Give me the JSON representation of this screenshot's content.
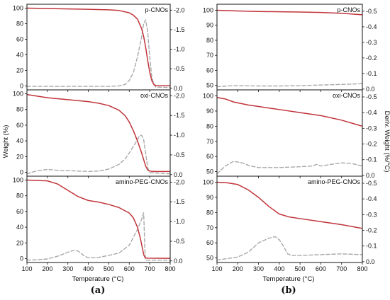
{
  "figure": {
    "captions": [
      "(a)",
      "(b)"
    ],
    "x_axis_title": "Temperature (°C)",
    "left_axis_title": "Weight (%)",
    "right_axis_title": "Deriv. Weight (%/°C)",
    "colors": {
      "weight": "#c0343a",
      "derivative": "#a9a9a9",
      "frame": "#111111"
    }
  },
  "chart_data": [
    {
      "type": "line",
      "column": "a",
      "row": 0,
      "panel_label": "p-CNOs",
      "x_ticks": [
        100,
        200,
        300,
        400,
        500,
        600,
        700,
        800
      ],
      "show_x_tick_labels": false,
      "xlim": [
        100,
        800
      ],
      "ylim": [
        -5,
        105
      ],
      "y_ticks": [
        0,
        20,
        40,
        60,
        80,
        100
      ],
      "y2lim": [
        -0.04,
        2.15
      ],
      "y2_ticks": [
        0.0,
        0.5,
        1.0,
        1.5,
        2.0
      ],
      "y2_tick_labels": [
        "0.0",
        "-0.5",
        "-1.0",
        "-1.5",
        "-2.0"
      ],
      "series": [
        {
          "role": "weight",
          "axis": "left",
          "x": [
            100,
            200,
            300,
            400,
            500,
            550,
            600,
            620,
            640,
            660,
            670,
            680,
            690,
            700,
            710,
            720,
            730,
            800
          ],
          "y": [
            100,
            99.5,
            99,
            98.5,
            97.8,
            97,
            94,
            91,
            86,
            74,
            64,
            50,
            33,
            18,
            7,
            2,
            0.5,
            0.3
          ]
        },
        {
          "role": "derivative",
          "axis": "right",
          "x": [
            100,
            300,
            500,
            550,
            580,
            600,
            620,
            640,
            660,
            670,
            680,
            690,
            700,
            710,
            720,
            730,
            800
          ],
          "y": [
            0.05,
            0.05,
            0.05,
            0.06,
            0.1,
            0.2,
            0.4,
            0.8,
            1.3,
            1.65,
            1.75,
            1.45,
            0.8,
            0.3,
            0.1,
            0.03,
            0.02
          ]
        }
      ]
    },
    {
      "type": "line",
      "column": "a",
      "row": 1,
      "panel_label": "oxi-CNOs",
      "x_ticks": [
        100,
        200,
        300,
        400,
        500,
        600,
        700,
        800
      ],
      "show_x_tick_labels": false,
      "xlim": [
        100,
        800
      ],
      "ylim": [
        -5,
        105
      ],
      "y_ticks": [
        0,
        20,
        40,
        60,
        80,
        100
      ],
      "y2lim": [
        -0.04,
        2.15
      ],
      "y2_ticks": [
        0.0,
        0.5,
        1.0,
        1.5,
        2.0
      ],
      "y2_tick_labels": [
        "0.0",
        "-0.5",
        "-1.0",
        "-1.5",
        "-2.0"
      ],
      "series": [
        {
          "role": "weight",
          "axis": "left",
          "x": [
            100,
            150,
            200,
            300,
            400,
            450,
            500,
            550,
            580,
            600,
            620,
            640,
            660,
            680,
            690,
            700,
            720,
            800
          ],
          "y": [
            99,
            97,
            95,
            92.5,
            90,
            88,
            85,
            79,
            72,
            64,
            53,
            40,
            25,
            8,
            3,
            1.5,
            1,
            1
          ]
        },
        {
          "role": "derivative",
          "axis": "right",
          "x": [
            100,
            150,
            200,
            250,
            300,
            350,
            400,
            450,
            500,
            550,
            580,
            600,
            630,
            650,
            660,
            670,
            680,
            690,
            700,
            800
          ],
          "y": [
            0.02,
            0.1,
            0.13,
            0.11,
            0.1,
            0.09,
            0.08,
            0.09,
            0.14,
            0.26,
            0.4,
            0.55,
            0.8,
            0.98,
            1.0,
            0.9,
            0.55,
            0.18,
            0.05,
            0.02
          ]
        }
      ]
    },
    {
      "type": "line",
      "column": "a",
      "row": 2,
      "panel_label": "amino-PEG-CNOs",
      "x_ticks": [
        100,
        200,
        300,
        400,
        500,
        600,
        700,
        800
      ],
      "show_x_tick_labels": true,
      "xlim": [
        100,
        800
      ],
      "ylim": [
        -5,
        105
      ],
      "y_ticks": [
        0,
        20,
        40,
        60,
        80,
        100
      ],
      "y2lim": [
        -0.04,
        2.15
      ],
      "y2_ticks": [
        0.0,
        0.5,
        1.0,
        1.5,
        2.0
      ],
      "y2_tick_labels": [
        "0.0",
        "-0.5",
        "-1.0",
        "-1.5",
        "-2.0"
      ],
      "series": [
        {
          "role": "weight",
          "axis": "left",
          "x": [
            100,
            200,
            250,
            300,
            350,
            400,
            450,
            500,
            550,
            600,
            620,
            640,
            655,
            665,
            672,
            678,
            690,
            800
          ],
          "y": [
            100,
            99,
            95,
            87,
            79,
            74,
            72,
            69,
            65,
            58,
            52,
            40,
            25,
            12,
            4,
            1,
            0.5,
            0.3
          ]
        },
        {
          "role": "derivative",
          "axis": "right",
          "x": [
            100,
            150,
            200,
            250,
            300,
            330,
            350,
            380,
            400,
            450,
            500,
            550,
            600,
            620,
            640,
            660,
            670,
            672,
            676,
            680,
            800
          ],
          "y": [
            0.02,
            0.03,
            0.05,
            0.12,
            0.22,
            0.27,
            0.25,
            0.13,
            0.08,
            0.09,
            0.14,
            0.2,
            0.4,
            0.6,
            0.8,
            1.05,
            1.22,
            1.0,
            0.3,
            0.02,
            0.02
          ]
        }
      ]
    },
    {
      "type": "line",
      "column": "b",
      "row": 0,
      "panel_label": "p-CNOs",
      "x_ticks": [
        100,
        200,
        300,
        400,
        500,
        600,
        700,
        800
      ],
      "show_x_tick_labels": false,
      "xlim": [
        100,
        800
      ],
      "ylim": [
        47,
        104
      ],
      "y_ticks": [
        50,
        60,
        70,
        80,
        90,
        100
      ],
      "y2lim": [
        -0.005,
        0.545
      ],
      "y2_ticks": [
        0.0,
        0.1,
        0.2,
        0.3,
        0.4,
        0.5
      ],
      "y2_tick_labels": [
        "0.0",
        "-0.1",
        "-0.2",
        "-0.3",
        "-0.4",
        "-0.5"
      ],
      "series": [
        {
          "role": "weight",
          "axis": "left",
          "x": [
            100,
            200,
            300,
            400,
            500,
            600,
            700,
            800
          ],
          "y": [
            100,
            99.5,
            99.2,
            99,
            98.8,
            98.5,
            98,
            97
          ]
        },
        {
          "role": "derivative",
          "axis": "right",
          "x": [
            100,
            150,
            200,
            300,
            400,
            500,
            600,
            700,
            750,
            800
          ],
          "y": [
            0.015,
            0.02,
            0.022,
            0.02,
            0.02,
            0.022,
            0.026,
            0.03,
            0.032,
            0.035
          ]
        }
      ]
    },
    {
      "type": "line",
      "column": "b",
      "row": 1,
      "panel_label": "oxi-CNOs",
      "x_ticks": [
        100,
        200,
        300,
        400,
        500,
        600,
        700,
        800
      ],
      "show_x_tick_labels": false,
      "xlim": [
        100,
        800
      ],
      "ylim": [
        47,
        104
      ],
      "y_ticks": [
        50,
        60,
        70,
        80,
        90,
        100
      ],
      "y2lim": [
        -0.005,
        0.545
      ],
      "y2_ticks": [
        0.0,
        0.1,
        0.2,
        0.3,
        0.4,
        0.5
      ],
      "y2_tick_labels": [
        "0.0",
        "-0.1",
        "-0.2",
        "-0.3",
        "-0.4",
        "-0.5"
      ],
      "series": [
        {
          "role": "weight",
          "axis": "left",
          "x": [
            100,
            140,
            180,
            250,
            300,
            400,
            500,
            600,
            700,
            800
          ],
          "y": [
            99,
            98,
            96,
            94,
            93,
            91,
            89,
            87,
            84,
            80
          ]
        },
        {
          "role": "derivative",
          "axis": "right",
          "x": [
            100,
            140,
            180,
            220,
            260,
            300,
            400,
            500,
            560,
            580,
            600,
            650,
            700,
            750,
            800
          ],
          "y": [
            0.01,
            0.06,
            0.09,
            0.08,
            0.06,
            0.05,
            0.05,
            0.055,
            0.06,
            0.07,
            0.06,
            0.07,
            0.08,
            0.075,
            0.06
          ]
        }
      ]
    },
    {
      "type": "line",
      "column": "b",
      "row": 2,
      "panel_label": "amino-PEG-CNOs",
      "x_ticks": [
        100,
        200,
        300,
        400,
        500,
        600,
        700,
        800
      ],
      "show_x_tick_labels": true,
      "xlim": [
        100,
        800
      ],
      "ylim": [
        47,
        104
      ],
      "y_ticks": [
        50,
        60,
        70,
        80,
        90,
        100
      ],
      "y2lim": [
        -0.005,
        0.545
      ],
      "y2_ticks": [
        0.0,
        0.1,
        0.2,
        0.3,
        0.4,
        0.5
      ],
      "y2_tick_labels": [
        "0.0",
        "-0.1",
        "-0.2",
        "-0.3",
        "-0.4",
        "-0.5"
      ],
      "series": [
        {
          "role": "weight",
          "axis": "left",
          "x": [
            100,
            150,
            200,
            250,
            300,
            350,
            400,
            450,
            500,
            600,
            700,
            800
          ],
          "y": [
            100,
            99.6,
            98.5,
            95,
            90,
            84,
            79,
            77,
            76,
            74,
            72,
            69.5
          ]
        },
        {
          "role": "derivative",
          "axis": "right",
          "x": [
            100,
            150,
            200,
            250,
            300,
            350,
            380,
            400,
            420,
            440,
            460,
            500,
            600,
            700,
            800
          ],
          "y": [
            0.01,
            0.02,
            0.03,
            0.06,
            0.12,
            0.15,
            0.16,
            0.14,
            0.1,
            0.05,
            0.04,
            0.04,
            0.045,
            0.05,
            0.045
          ]
        }
      ]
    }
  ]
}
